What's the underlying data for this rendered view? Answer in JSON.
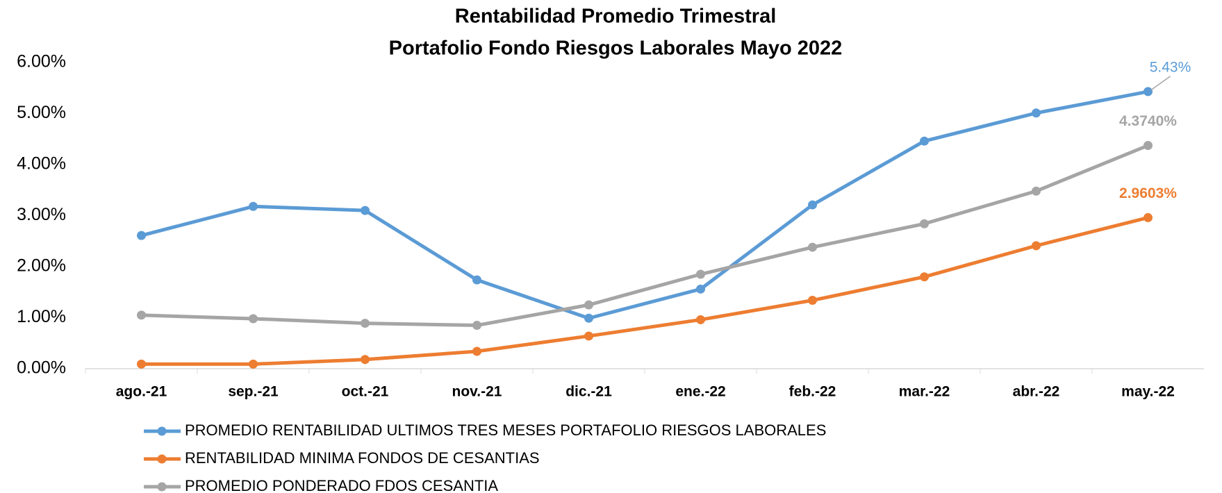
{
  "chart_data": {
    "type": "line",
    "title": [
      "Rentabilidad Promedio Trimestral",
      "Portafolio Fondo Riesgos Laborales  Mayo 2022"
    ],
    "categories": [
      "ago.-21",
      "sep.-21",
      "oct.-21",
      "nov.-21",
      "dic.-21",
      "ene.-22",
      "feb.-22",
      "mar.-22",
      "abr.-22",
      "may.-22"
    ],
    "series": [
      {
        "name": "PROMEDIO RENTABILIDAD ULTIMOS TRES MESES PORTAFOLIO RIESGOS LABORALES",
        "color": "#5b9bd5",
        "values": [
          2.61,
          3.18,
          3.1,
          1.74,
          0.99,
          1.56,
          3.21,
          4.46,
          5.01,
          5.43
        ],
        "value_labels": [
          null,
          null,
          null,
          null,
          null,
          null,
          null,
          null,
          null,
          "5.43%"
        ]
      },
      {
        "name": "RENTABILIDAD MINIMA FONDOS DE CESANTIAS",
        "color": "#ed7d31",
        "values": [
          0.09,
          0.09,
          0.18,
          0.34,
          0.64,
          0.96,
          1.34,
          1.8,
          2.41,
          2.9603
        ],
        "value_labels": [
          null,
          null,
          null,
          null,
          null,
          null,
          null,
          null,
          null,
          "2.9603%"
        ]
      },
      {
        "name": "PROMEDIO PONDERADO  FDOS CESANTIA",
        "color": "#a5a5a5",
        "values": [
          1.05,
          0.98,
          0.89,
          0.85,
          1.25,
          1.85,
          2.38,
          2.84,
          3.48,
          4.374
        ],
        "value_labels": [
          null,
          null,
          null,
          null,
          null,
          null,
          null,
          null,
          null,
          "4.3740%"
        ]
      }
    ],
    "ylim": [
      0,
      6
    ],
    "yticks": [
      {
        "value": 0,
        "label": "0.00%"
      },
      {
        "value": 1,
        "label": "1.00%"
      },
      {
        "value": 2,
        "label": "2.00%"
      },
      {
        "value": 3,
        "label": "3.00%"
      },
      {
        "value": 4,
        "label": "4.00%"
      },
      {
        "value": 5,
        "label": "5.00%"
      },
      {
        "value": 6,
        "label": "6.00%"
      }
    ],
    "grid": false,
    "legend": "bottom"
  }
}
